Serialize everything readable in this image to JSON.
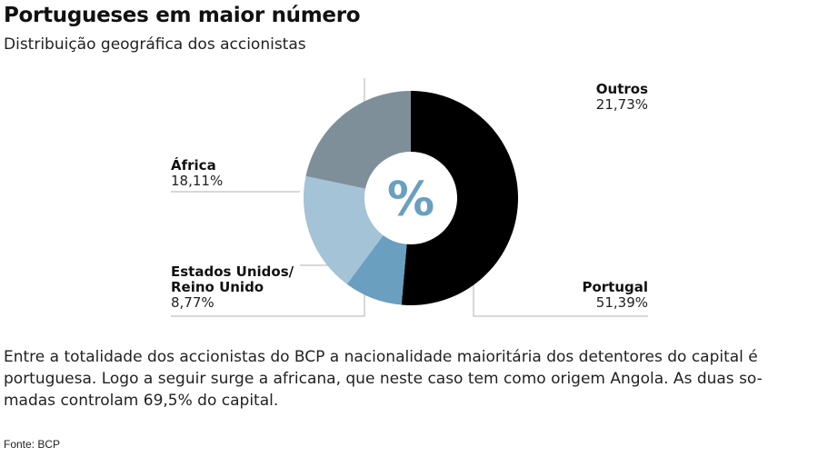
{
  "title": "Portugueses em maior número",
  "subtitle": "Distribuição geográfica dos accionistas",
  "body": "Entre a totalidade dos accionistas do BCP a nacionalidade maioritária dos detentores do capital é portuguesa. Logo a seguir surge a africana, que neste caso tem como origem Angola. As duas so-madas controlam 69,5% do capital.",
  "source": "Fonte: BCP",
  "chart_data": {
    "type": "pie",
    "title": "Portugueses em maior número",
    "subtitle": "Distribuição geográfica dos accionistas",
    "center_label": "%",
    "unit": "%",
    "slices": [
      {
        "name": "Portugal",
        "name_lines": [
          "Portugal"
        ],
        "value": 51.39,
        "label": "51,39%",
        "color": "#000000"
      },
      {
        "name": "Estados Unidos/ Reino Unido",
        "name_lines": [
          "Estados Unidos/",
          "Reino Unido"
        ],
        "value": 8.77,
        "label": "8,77%",
        "color": "#6a9fc0"
      },
      {
        "name": "África",
        "name_lines": [
          "África"
        ],
        "value": 18.11,
        "label": "18,11%",
        "color": "#a5c3d6"
      },
      {
        "name": "Outros",
        "name_lines": [
          "Outros"
        ],
        "value": 21.73,
        "label": "21,73%",
        "color": "#7e8f99"
      }
    ]
  }
}
